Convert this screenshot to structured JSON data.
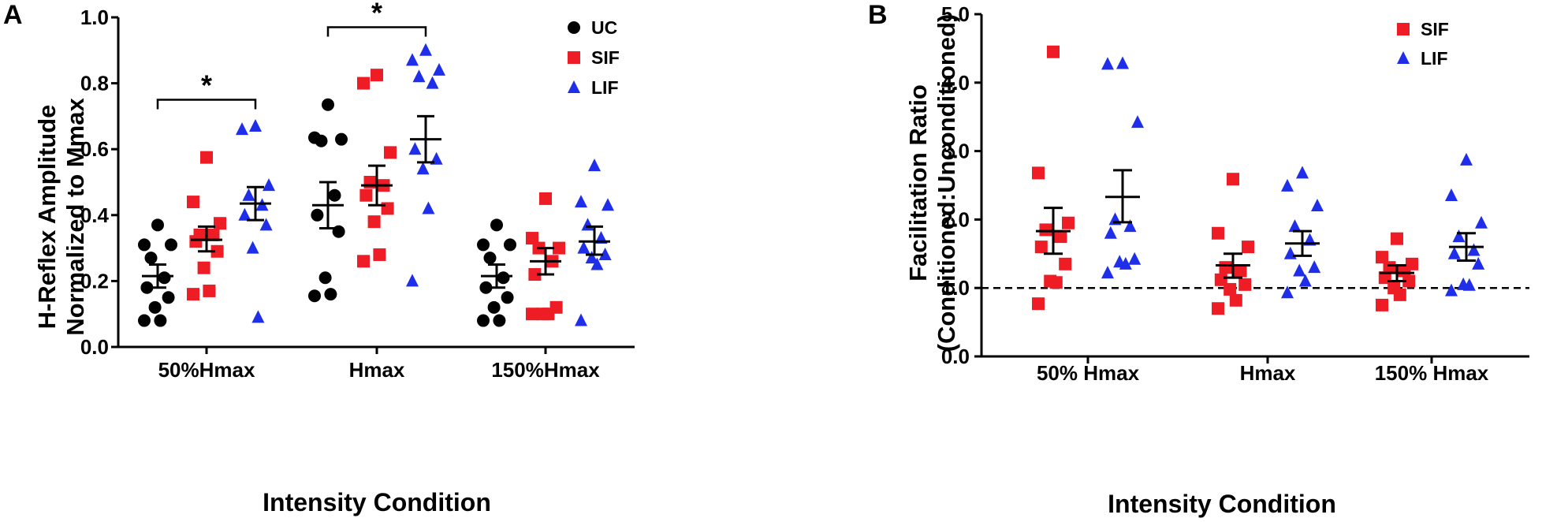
{
  "chart_data": [
    {
      "panel": "A",
      "type": "scatter",
      "ylabel_line1": "H-Reflex Amplitude",
      "ylabel_line2": "Normalized to Mmax",
      "xlabel": "Intensity Condition",
      "ylim": [
        0,
        1.0
      ],
      "yticks": [
        "0.0",
        "0.2",
        "0.4",
        "0.6",
        "0.8",
        "1.0"
      ],
      "categories": [
        "50%Hmax",
        "Hmax",
        "150%Hmax"
      ],
      "legend": [
        {
          "name": "UC",
          "marker": "circle",
          "color": "#000000"
        },
        {
          "name": "SIF",
          "marker": "square",
          "color": "#ee1c25"
        },
        {
          "name": "LIF",
          "marker": "triangle",
          "color": "#1f2ee8"
        }
      ],
      "series": [
        {
          "name": "UC",
          "color": "#000000",
          "marker": "circle",
          "groups": [
            {
              "category": "50%Hmax",
              "mean": 0.215,
              "sem_low": 0.18,
              "sem_high": 0.25,
              "points": [
                0.37,
                0.31,
                0.31,
                0.27,
                0.21,
                0.18,
                0.15,
                0.12,
                0.08,
                0.08
              ]
            },
            {
              "category": "Hmax",
              "mean": 0.43,
              "sem_low": 0.36,
              "sem_high": 0.5,
              "points": [
                0.735,
                0.635,
                0.63,
                0.625,
                0.46,
                0.4,
                0.35,
                0.21,
                0.16,
                0.155
              ]
            },
            {
              "category": "150%Hmax",
              "mean": 0.215,
              "sem_low": 0.18,
              "sem_high": 0.25,
              "points": [
                0.37,
                0.31,
                0.31,
                0.27,
                0.21,
                0.18,
                0.15,
                0.12,
                0.08,
                0.08
              ]
            }
          ]
        },
        {
          "name": "SIF",
          "color": "#ee1c25",
          "marker": "square",
          "groups": [
            {
              "category": "50%Hmax",
              "mean": 0.325,
              "sem_low": 0.29,
              "sem_high": 0.365,
              "points": [
                0.575,
                0.44,
                0.375,
                0.34,
                0.34,
                0.32,
                0.29,
                0.24,
                0.17,
                0.16
              ]
            },
            {
              "category": "Hmax",
              "mean": 0.49,
              "sem_low": 0.43,
              "sem_high": 0.55,
              "points": [
                0.825,
                0.8,
                0.59,
                0.5,
                0.49,
                0.46,
                0.42,
                0.38,
                0.28,
                0.26
              ]
            },
            {
              "category": "150%Hmax",
              "mean": 0.26,
              "sem_low": 0.22,
              "sem_high": 0.3,
              "points": [
                0.45,
                0.33,
                0.3,
                0.3,
                0.26,
                0.22,
                0.12,
                0.1,
                0.1,
                0.1
              ]
            }
          ]
        },
        {
          "name": "LIF",
          "color": "#1f2ee8",
          "marker": "triangle",
          "groups": [
            {
              "category": "50%Hmax",
              "mean": 0.435,
              "sem_low": 0.385,
              "sem_high": 0.485,
              "points": [
                0.67,
                0.66,
                0.49,
                0.46,
                0.43,
                0.4,
                0.37,
                0.3,
                0.09
              ]
            },
            {
              "category": "Hmax",
              "mean": 0.63,
              "sem_low": 0.56,
              "sem_high": 0.7,
              "points": [
                0.9,
                0.87,
                0.84,
                0.82,
                0.8,
                0.6,
                0.57,
                0.54,
                0.42,
                0.2
              ]
            },
            {
              "category": "150%Hmax",
              "mean": 0.32,
              "sem_low": 0.28,
              "sem_high": 0.365,
              "points": [
                0.55,
                0.44,
                0.43,
                0.37,
                0.33,
                0.3,
                0.28,
                0.27,
                0.25,
                0.08
              ]
            }
          ]
        }
      ],
      "significance": [
        {
          "between": [
            "UC",
            "LIF"
          ],
          "category": "50%Hmax",
          "y": 0.75,
          "label": "*"
        },
        {
          "between": [
            "UC",
            "LIF"
          ],
          "category": "Hmax",
          "y": 0.97,
          "label": "*"
        }
      ]
    },
    {
      "panel": "B",
      "type": "scatter",
      "ylabel_line1": "Facilitation Ratio",
      "ylabel_line2": "(Conditioned:Unconditioned)",
      "xlabel": "Intensity Condition",
      "ylim": [
        0,
        5.0
      ],
      "yticks": [
        "0.0",
        "1.0",
        "2.0",
        "3.0",
        "4.0",
        "5.0"
      ],
      "reference_line": 1.0,
      "categories": [
        "50% Hmax",
        "Hmax",
        "150% Hmax"
      ],
      "legend": [
        {
          "name": "SIF",
          "marker": "square",
          "color": "#ee1c25"
        },
        {
          "name": "LIF",
          "marker": "triangle",
          "color": "#1f2ee8"
        }
      ],
      "series": [
        {
          "name": "SIF",
          "color": "#ee1c25",
          "marker": "square",
          "groups": [
            {
              "category": "50% Hmax",
              "mean": 1.83,
              "sem_low": 1.5,
              "sem_high": 2.17,
              "points": [
                4.45,
                2.68,
                1.95,
                1.85,
                1.75,
                1.6,
                1.35,
                1.1,
                1.08,
                0.77
              ]
            },
            {
              "category": "Hmax",
              "mean": 1.33,
              "sem_low": 1.15,
              "sem_high": 1.5,
              "points": [
                2.59,
                1.8,
                1.6,
                1.3,
                1.25,
                1.12,
                1.05,
                0.98,
                0.82,
                0.7
              ]
            },
            {
              "category": "150% Hmax",
              "mean": 1.22,
              "sem_low": 1.1,
              "sem_high": 1.33,
              "points": [
                1.72,
                1.45,
                1.35,
                1.3,
                1.25,
                1.15,
                1.1,
                1.0,
                0.9,
                0.75
              ]
            }
          ]
        },
        {
          "name": "LIF",
          "color": "#1f2ee8",
          "marker": "triangle",
          "groups": [
            {
              "category": "50% Hmax",
              "mean": 2.33,
              "sem_low": 1.96,
              "sem_high": 2.72,
              "points": [
                4.28,
                4.27,
                3.42,
                2.0,
                1.9,
                1.8,
                1.42,
                1.38,
                1.35,
                1.22
              ]
            },
            {
              "category": "Hmax",
              "mean": 1.65,
              "sem_low": 1.47,
              "sem_high": 1.83,
              "points": [
                2.68,
                2.49,
                2.2,
                1.9,
                1.7,
                1.5,
                1.3,
                1.25,
                1.1,
                0.93
              ]
            },
            {
              "category": "150% Hmax",
              "mean": 1.6,
              "sem_low": 1.4,
              "sem_high": 1.8,
              "points": [
                2.87,
                2.35,
                1.95,
                1.75,
                1.55,
                1.5,
                1.35,
                1.05,
                1.04,
                0.96
              ]
            }
          ]
        }
      ]
    }
  ]
}
